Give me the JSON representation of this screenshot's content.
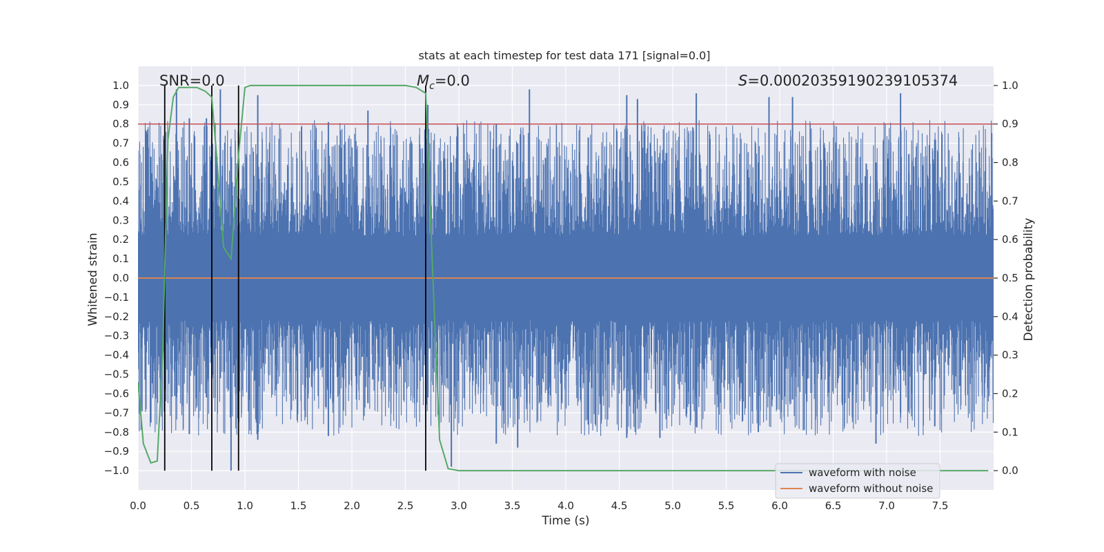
{
  "chart_data": {
    "type": "line",
    "title": "stats at each timestep for test data 171 [signal=0.0]",
    "xlabel": "Time (s)",
    "ylabel": "Whitened strain",
    "y2label": "Detection probability",
    "xlim": [
      0.0,
      8.0
    ],
    "ylim": [
      -1.1,
      1.1
    ],
    "y2lim": [
      -0.05,
      1.05
    ],
    "x_ticks": [
      0.0,
      0.5,
      1.0,
      1.5,
      2.0,
      2.5,
      3.0,
      3.5,
      4.0,
      4.5,
      5.0,
      5.5,
      6.0,
      6.5,
      7.0,
      7.5
    ],
    "x_tick_labels": [
      "0.0",
      "0.5",
      "1.0",
      "1.5",
      "2.0",
      "2.5",
      "3.0",
      "3.5",
      "4.0",
      "4.5",
      "5.0",
      "5.5",
      "6.0",
      "6.5",
      "7.0",
      "7.5"
    ],
    "y_ticks": [
      1.0,
      0.9,
      0.8,
      0.7,
      0.6,
      0.5,
      0.4,
      0.3,
      0.2,
      0.1,
      0.0,
      -0.1,
      -0.2,
      -0.3,
      -0.4,
      -0.5,
      -0.6,
      -0.7,
      -0.8,
      -0.9,
      -1.0
    ],
    "y_tick_labels": [
      "1.0",
      "0.9",
      "0.8",
      "0.7",
      "0.6",
      "0.5",
      "0.4",
      "0.3",
      "0.2",
      "0.1",
      "0.0",
      "−0.1",
      "−0.2",
      "−0.3",
      "−0.4",
      "−0.5",
      "−0.6",
      "−0.7",
      "−0.8",
      "−0.9",
      "−1.0"
    ],
    "y2_ticks": [
      1.0,
      0.9,
      0.8,
      0.7,
      0.6,
      0.5,
      0.4,
      0.3,
      0.2,
      0.1,
      0.0
    ],
    "y2_tick_labels": [
      "1.0",
      "0.9",
      "0.8",
      "0.7",
      "0.6",
      "0.5",
      "0.4",
      "0.3",
      "0.2",
      "0.1",
      "0.0"
    ],
    "grid": true,
    "legend_location": "lower-right",
    "annotations": {
      "snr": "SNR=0.0",
      "mc_symbol": "M",
      "mc_subscript": "c",
      "mc_value": "=0.0",
      "s_symbol": "S",
      "s_value": "=0.00020359190239105374"
    },
    "threshold_y2": 0.9,
    "vertical_lines_x": [
      0.25,
      0.69,
      0.94,
      2.69
    ],
    "series": [
      {
        "name": "waveform with noise",
        "color": "#4c72b0",
        "description": "dense noisy whitened strain, typical amplitude ±0.4 with peaks to ±1.0",
        "peaks": [
          {
            "x": 0.12,
            "max": 0.63,
            "min": -0.75
          },
          {
            "x": 0.36,
            "max": 0.98,
            "min": -0.62
          },
          {
            "x": 0.48,
            "max": 0.83,
            "min": -0.81
          },
          {
            "x": 0.64,
            "max": 0.83,
            "min": -0.62
          },
          {
            "x": 0.77,
            "max": 0.98,
            "min": -0.52
          },
          {
            "x": 0.87,
            "max": 0.6,
            "min": -1.0
          },
          {
            "x": 1.12,
            "max": 0.95,
            "min": -0.84
          },
          {
            "x": 1.78,
            "max": 0.81,
            "min": -0.82
          },
          {
            "x": 2.15,
            "max": 0.87,
            "min": -0.65
          },
          {
            "x": 2.71,
            "max": 0.9,
            "min": -0.62
          },
          {
            "x": 2.93,
            "max": 0.6,
            "min": -0.98
          },
          {
            "x": 3.35,
            "max": 0.8,
            "min": -0.86
          },
          {
            "x": 3.55,
            "max": 0.7,
            "min": -0.88
          },
          {
            "x": 3.66,
            "max": 0.98,
            "min": -0.55
          },
          {
            "x": 4.21,
            "max": 0.73,
            "min": -0.76
          },
          {
            "x": 4.57,
            "max": 0.95,
            "min": -0.83
          },
          {
            "x": 4.67,
            "max": 0.93,
            "min": -0.6
          },
          {
            "x": 4.88,
            "max": 0.65,
            "min": -0.83
          },
          {
            "x": 5.22,
            "max": 0.96,
            "min": -0.62
          },
          {
            "x": 5.9,
            "max": 0.94,
            "min": -0.55
          },
          {
            "x": 6.12,
            "max": 0.94,
            "min": -0.63
          },
          {
            "x": 5.8,
            "max": 0.6,
            "min": -0.8
          },
          {
            "x": 6.9,
            "max": 0.6,
            "min": -0.86
          },
          {
            "x": 7.13,
            "max": 0.96,
            "min": -0.7
          },
          {
            "x": 7.45,
            "max": 0.72,
            "min": -0.77
          }
        ]
      },
      {
        "name": "waveform without noise",
        "color": "#dd8452",
        "x": [
          0.0,
          8.0
        ],
        "y": [
          0.0,
          0.0
        ]
      },
      {
        "name": "detection probability",
        "color": "#55a868",
        "axis": "right",
        "x": [
          0.0,
          0.05,
          0.12,
          0.18,
          0.23,
          0.28,
          0.33,
          0.38,
          0.45,
          0.55,
          0.63,
          0.69,
          0.74,
          0.8,
          0.87,
          0.94,
          1.0,
          1.05,
          1.2,
          1.5,
          2.0,
          2.5,
          2.6,
          2.69,
          2.75,
          2.82,
          2.9,
          3.0,
          4.0,
          5.0,
          6.0,
          7.0,
          7.95
        ],
        "y": [
          0.23,
          0.07,
          0.02,
          0.025,
          0.3,
          0.86,
          0.97,
          0.995,
          0.995,
          0.995,
          0.985,
          0.97,
          0.8,
          0.58,
          0.55,
          0.82,
          0.995,
          1.0,
          1.0,
          1.0,
          1.0,
          1.0,
          0.995,
          0.98,
          0.55,
          0.08,
          0.005,
          0.0,
          0.0,
          0.0,
          0.0,
          0.0,
          0.0
        ]
      }
    ]
  }
}
